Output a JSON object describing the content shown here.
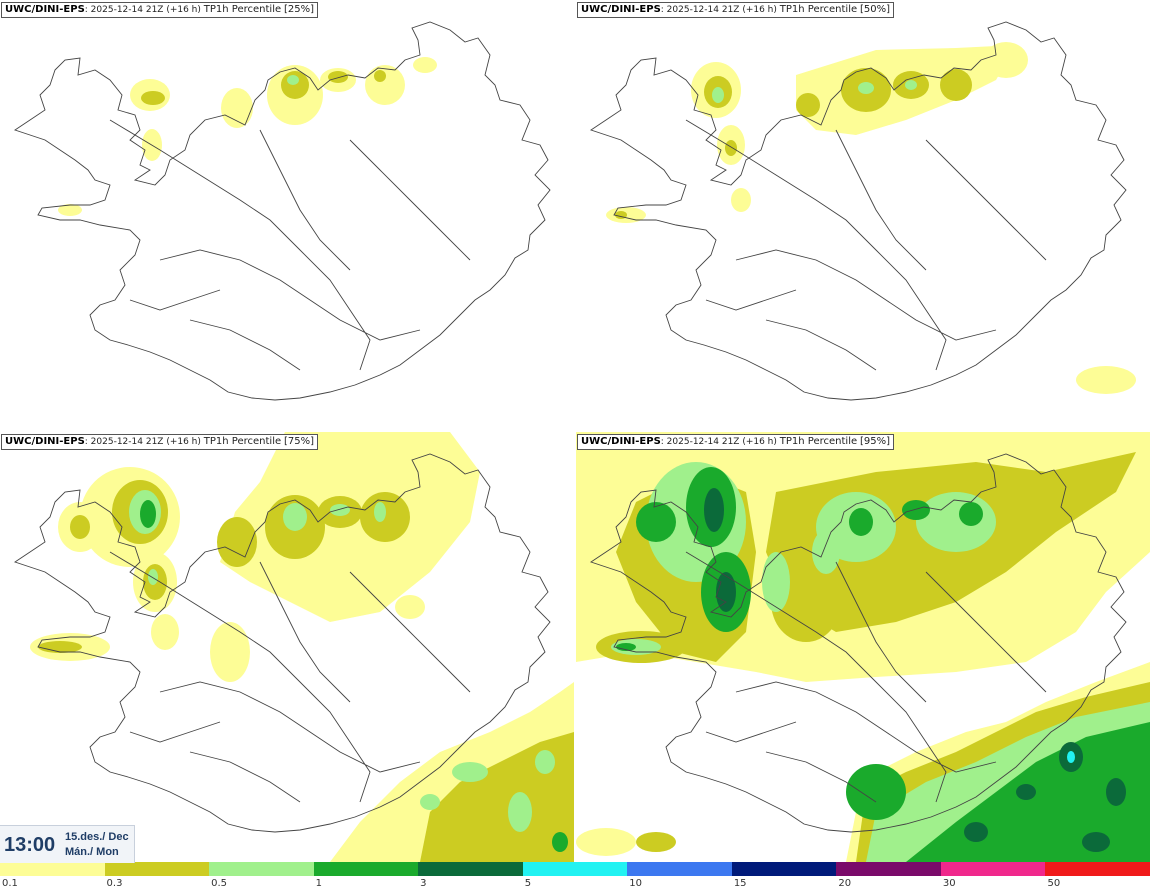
{
  "panels": [
    {
      "model": "UWC/DINI-EPS",
      "init": "2025-12-14 21Z (+16 h)",
      "product": "TP1h Percentile",
      "pct": "[25%]"
    },
    {
      "model": "UWC/DINI-EPS",
      "init": "2025-12-14 21Z (+16 h)",
      "product": "TP1h Percentile",
      "pct": "[50%]"
    },
    {
      "model": "UWC/DINI-EPS",
      "init": "2025-12-14 21Z (+16 h)",
      "product": "TP1h Percentile",
      "pct": "[75%]"
    },
    {
      "model": "UWC/DINI-EPS",
      "init": "2025-12-14 21Z (+16 h)",
      "product": "TP1h Percentile",
      "pct": "[95%]"
    }
  ],
  "time": {
    "clock": "13:00",
    "date_line": "15.des./ Dec",
    "day_line": "Mán./ Mon"
  },
  "legend": {
    "labels": [
      "0.1",
      "0.3",
      "0.5",
      "1",
      "3",
      "5",
      "10",
      "15",
      "20",
      "30",
      "50"
    ],
    "colors": [
      "#fdfd96",
      "#cccc22",
      "#a0f08c",
      "#1aaa2c",
      "#0b6a3a",
      "#22f2f2",
      "#3c78f0",
      "#001a7a",
      "#7a0a6a",
      "#f0288c",
      "#f01a1a"
    ]
  },
  "colors": {
    "c1": "#fdfd96",
    "c2": "#cccc22",
    "c3": "#a0f08c",
    "c4": "#1aaa2c",
    "c5": "#0b6a3a",
    "c6": "#22f2f2"
  }
}
